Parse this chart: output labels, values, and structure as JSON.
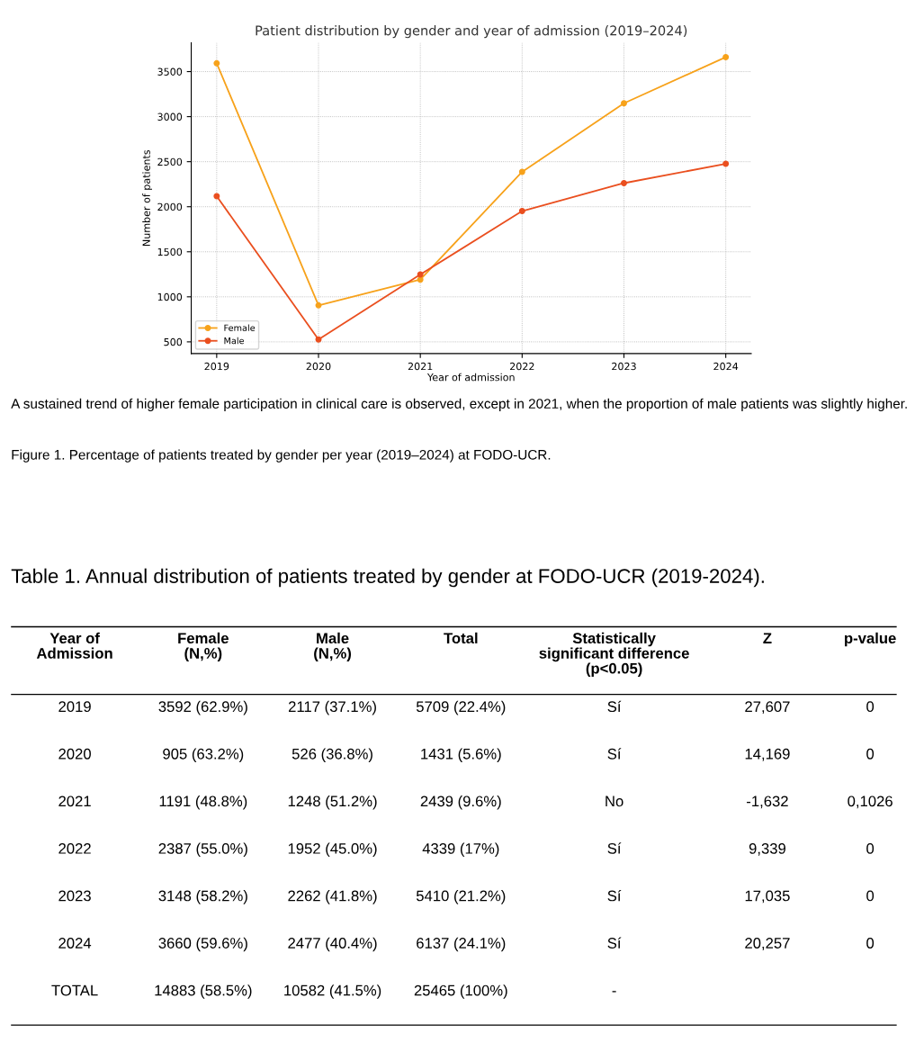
{
  "chart_data": [
    {
      "type": "line",
      "title": "Patient distribution by gender and year of admission (2019–2024)",
      "xlabel": "Year of admission",
      "ylabel": "Number of patients",
      "x": [
        2019,
        2020,
        2021,
        2022,
        2023,
        2024
      ],
      "series": [
        {
          "name": "Female",
          "color": "#f7a21b",
          "values": [
            3592,
            905,
            1191,
            2387,
            3148,
            3660
          ]
        },
        {
          "name": "Male",
          "color": "#ea4f1f",
          "values": [
            2117,
            526,
            1248,
            1952,
            2262,
            2477
          ]
        }
      ],
      "xlim": [
        2018.75,
        2024.25
      ],
      "xticks": [
        2019,
        2020,
        2021,
        2022,
        2023,
        2024
      ],
      "ylim": [
        370,
        3820
      ],
      "yticks": [
        500,
        1000,
        1500,
        2000,
        2500,
        3000,
        3500
      ],
      "grid": true,
      "legend": "bottom left",
      "marker": "circle",
      "line_style": "solid",
      "annotations": [
        "A sustained trend of higher female participation in clinical care is observed, except in 2021, when the proportion of male patients was slightly higher.",
        "Figure 1. Percentage of patients treated by gender per year (2019–2024) at FODO-UCR."
      ]
    },
    {
      "type": "heatmap",
      "title": "Table 1. Annual distribution of patients treated by gender at FODO-UCR (2019-2024).",
      "ylabel": "Year of\nAdmission",
      "categories": [
        "Female\n(N,%)",
        "Male\n(N,%)",
        "Total",
        "Statistically\nsignificant difference\n(p<0.05)",
        "Z",
        "p-value"
      ],
      "y_categories": [
        "2019",
        "2020",
        "2021",
        "2022",
        "2023",
        "2024",
        "TOTAL"
      ],
      "cells": [
        [
          null,
          null,
          null,
          null,
          null,
          null
        ],
        [
          null,
          null,
          null,
          null,
          null,
          null
        ],
        [
          null,
          null,
          null,
          null,
          null,
          null
        ],
        [
          null,
          null,
          null,
          null,
          null,
          null
        ],
        [
          null,
          null,
          null,
          null,
          null,
          null
        ],
        [
          null,
          null,
          null,
          null,
          null,
          null
        ],
        [
          null,
          null,
          null,
          null,
          null,
          null
        ]
      ],
      "cell_labels": [
        [
          "3592 (62.9%)",
          "2117 (37.1%)",
          "5709 (22.4%)",
          "Sí",
          "27,607",
          "0"
        ],
        [
          "905 (63.2%)",
          "526 (36.8%)",
          "1431 (5.6%)",
          "Sí",
          "14,169",
          "0"
        ],
        [
          "1191 (48.8%)",
          "1248 (51.2%)",
          "2439 (9.6%)",
          "No",
          "-1,632",
          "0,1026"
        ],
        [
          "2387 (55.0%)",
          "1952 (45.0%)",
          "4339 (17%)",
          "Sí",
          "9,339",
          "0"
        ],
        [
          "3148 (58.2%)",
          "2262 (41.8%)",
          "5410 (21.2%)",
          "Sí",
          "17,035",
          "0"
        ],
        [
          "3660 (59.6%)",
          "2477 (40.4%)",
          "6137 (24.1%)",
          "Sí",
          "20,257",
          "0"
        ],
        [
          "14883 (58.5%)",
          "10582 (41.5%)",
          "25465 (100%)",
          "-",
          null,
          null
        ]
      ]
    }
  ]
}
